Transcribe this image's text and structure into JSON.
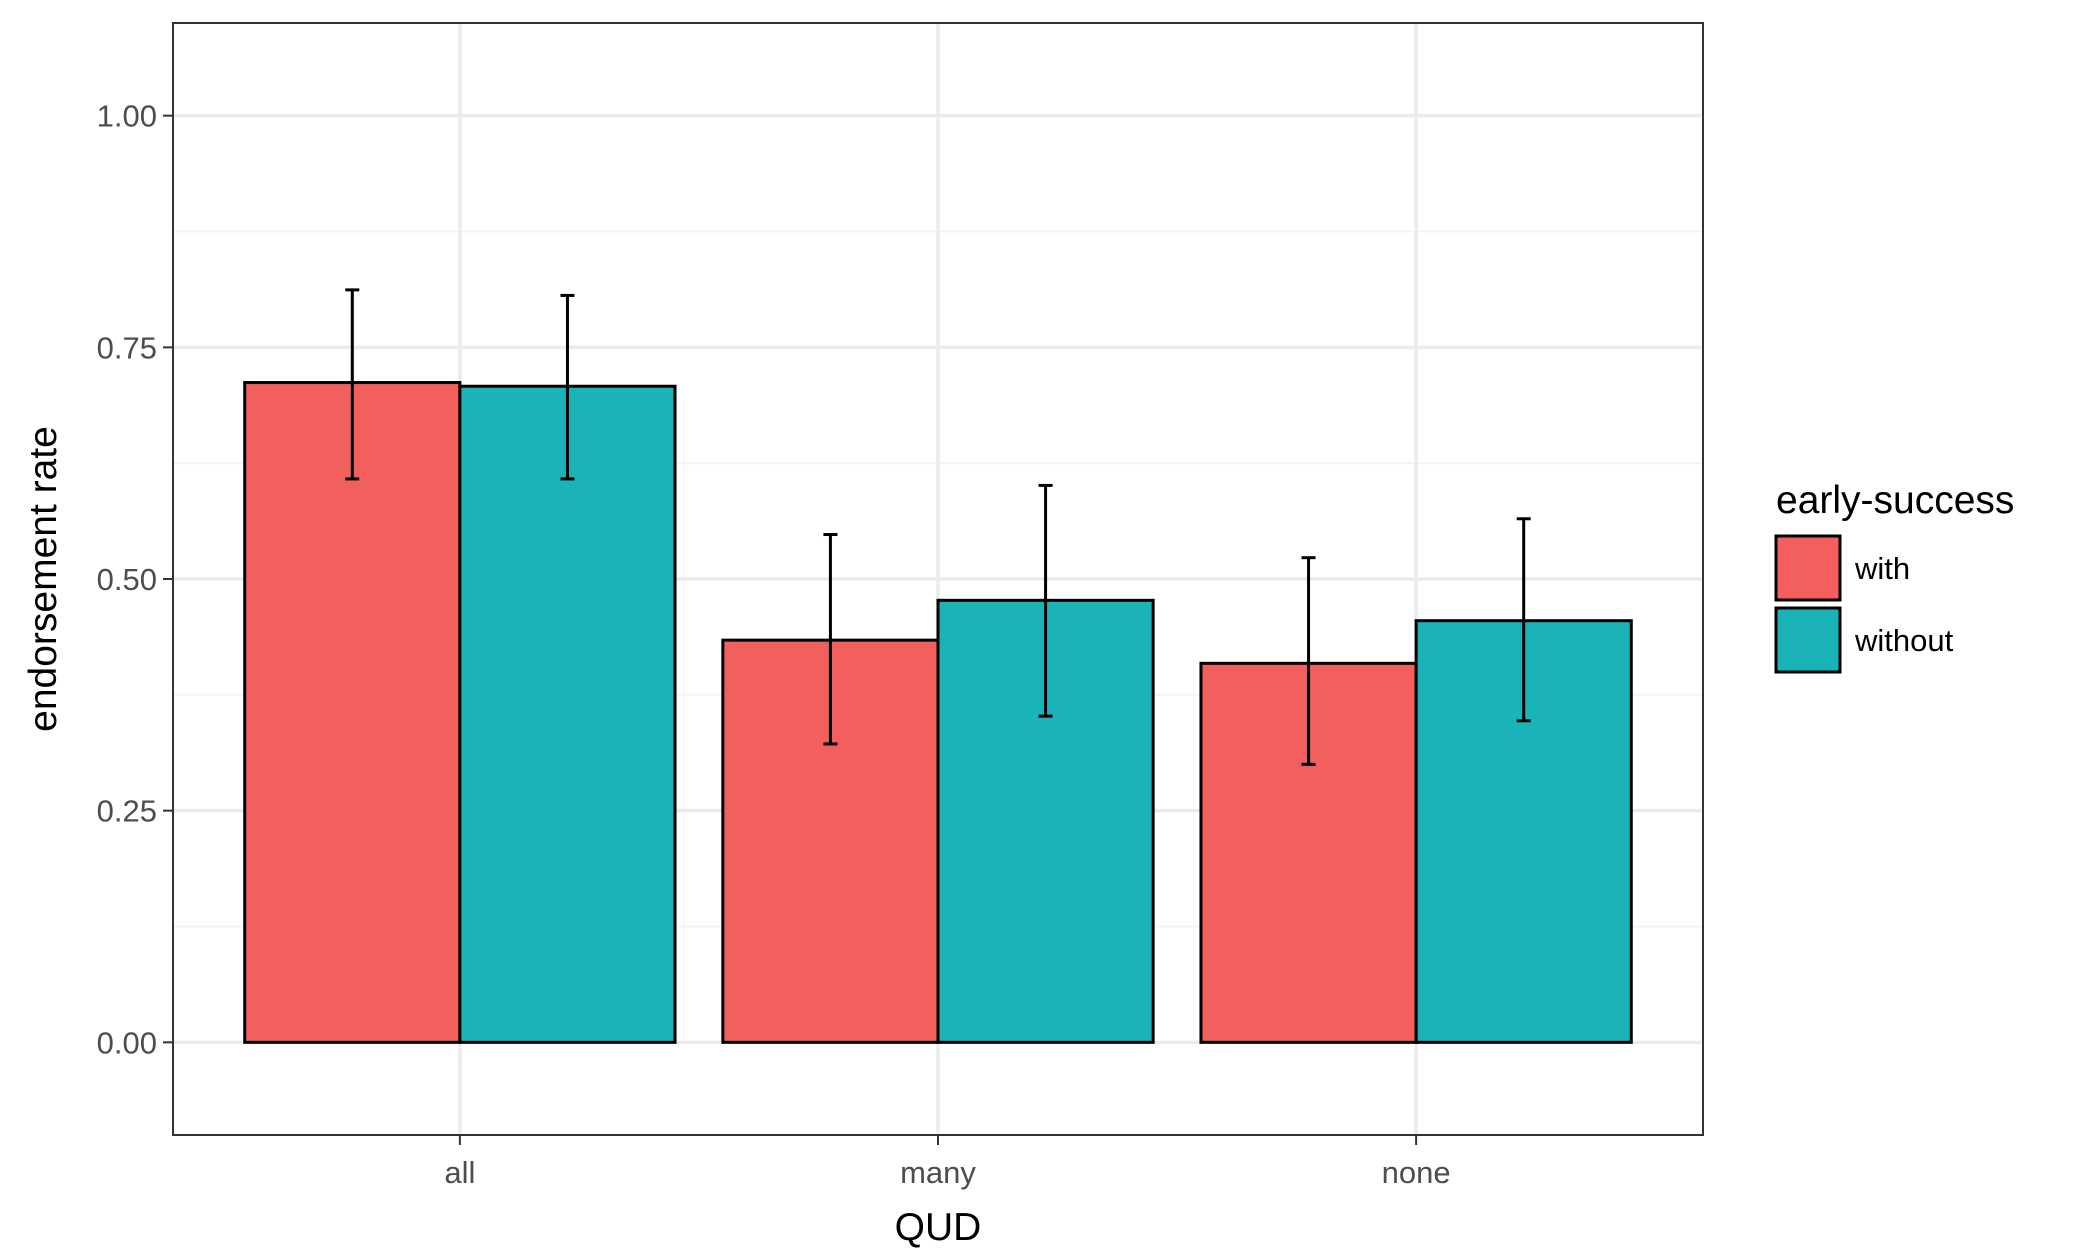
{
  "chart_data": {
    "type": "bar",
    "categories": [
      "all",
      "many",
      "none"
    ],
    "series": [
      {
        "name": "with",
        "color": "#F25F5C",
        "values": [
          0.712,
          0.434,
          0.409
        ],
        "error_low": [
          0.608,
          0.322,
          0.3
        ],
        "error_high": [
          0.812,
          0.548,
          0.523
        ]
      },
      {
        "name": "without",
        "color": "#1AB3B8",
        "values": [
          0.708,
          0.477,
          0.455
        ],
        "error_low": [
          0.608,
          0.352,
          0.347
        ],
        "error_high": [
          0.806,
          0.601,
          0.565
        ]
      }
    ],
    "xlabel": "QUD",
    "ylabel": "endorsement rate",
    "ylim": [
      -0.1,
      1.1
    ],
    "yticks": [
      "0.00",
      "0.25",
      "0.50",
      "0.75",
      "1.00"
    ],
    "grid": true,
    "legend": {
      "title": "early-success",
      "position": "right"
    }
  }
}
